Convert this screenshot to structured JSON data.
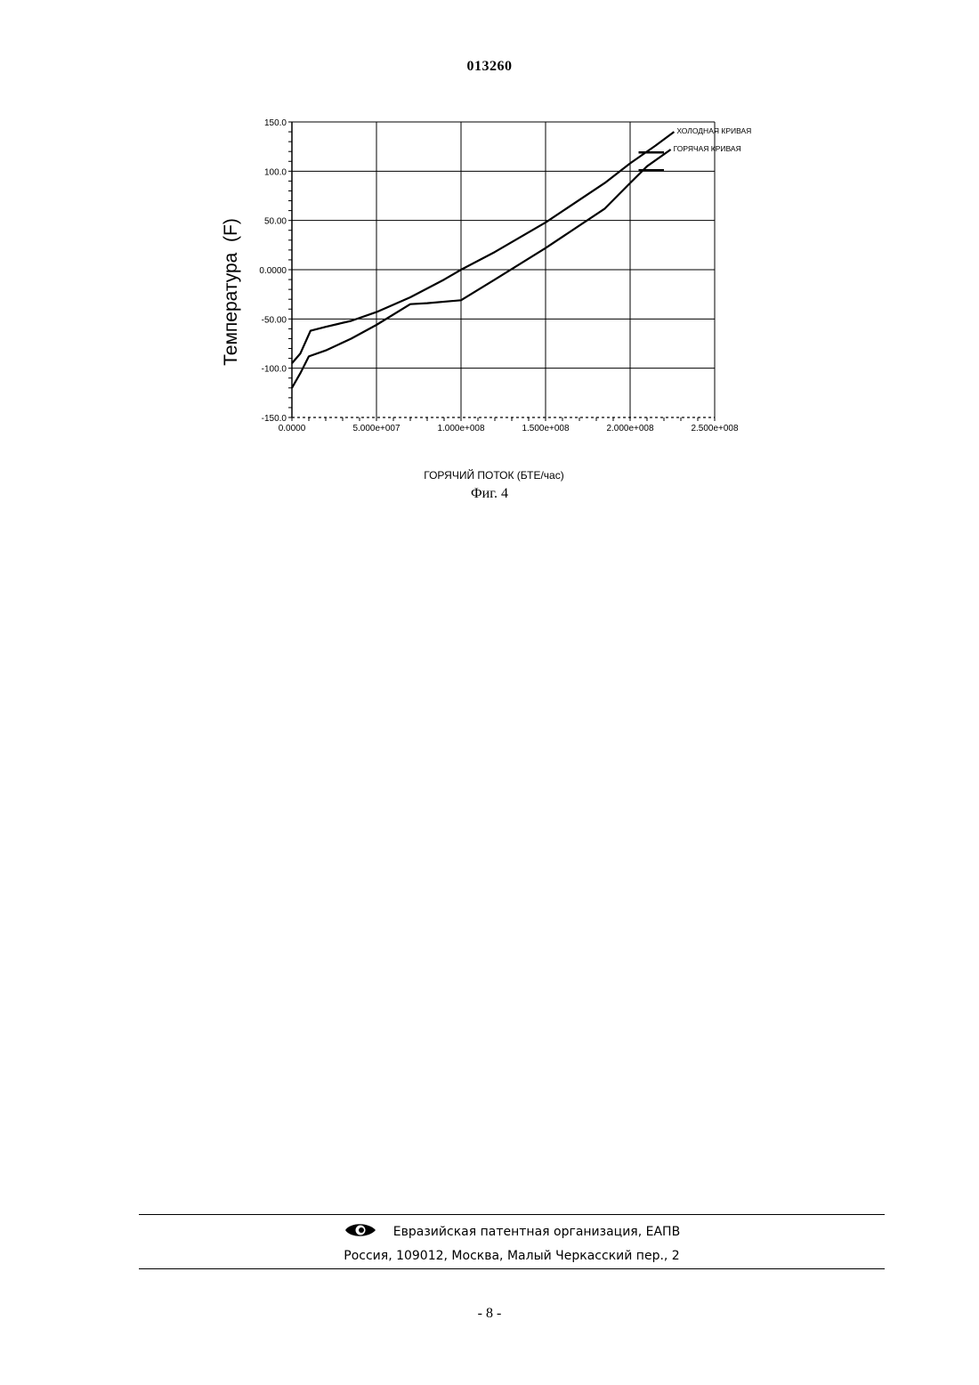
{
  "header": {
    "doc_number": "013260"
  },
  "figure": {
    "caption": "Фиг. 4"
  },
  "chart_data": {
    "type": "line",
    "title": "",
    "xlabel": "ГОРЯЧИЙ ПОТОК (БТЕ/час)",
    "ylabel": "Температура  (F)",
    "xlim": [
      0,
      250000000
    ],
    "ylim": [
      -150,
      150
    ],
    "x_ticks": [
      0,
      50000000,
      100000000,
      150000000,
      200000000,
      250000000
    ],
    "x_tick_labels": [
      "0.0000",
      "5.000e+007",
      "1.000e+008",
      "1.500e+008",
      "2.000e+008",
      "2.500e+008"
    ],
    "y_ticks": [
      150,
      100,
      50,
      0,
      -50,
      -100,
      -150
    ],
    "y_tick_labels": [
      "150.0",
      "100.0",
      "50.00",
      "0.0000",
      "-50.00",
      "-100.0",
      "-150.0"
    ],
    "grid": true,
    "series": [
      {
        "name": "ХОЛОДНАЯ КРИВАЯ",
        "x": [
          0,
          5000000,
          11000000,
          20000000,
          35000000,
          50000000,
          70000000,
          90000000,
          100000000,
          120000000,
          150000000,
          185000000,
          200000000,
          215000000,
          226000000
        ],
        "y": [
          -95,
          -85,
          -62,
          -58,
          -52,
          -43,
          -28,
          -10,
          0,
          18,
          48,
          88,
          108,
          126,
          140
        ]
      },
      {
        "name": "ГОРЯЧАЯ КРИВАЯ",
        "x": [
          0,
          5000000,
          10000000,
          20000000,
          35000000,
          50000000,
          70000000,
          80000000,
          100000000,
          120000000,
          150000000,
          185000000,
          200000000,
          210000000,
          224000000
        ],
        "y": [
          -120,
          -105,
          -88,
          -82,
          -70,
          -56,
          -35,
          -34,
          -31,
          -10,
          22,
          62,
          88,
          105,
          122
        ]
      }
    ],
    "markers": [
      {
        "x": [
          205000000,
          220000000
        ],
        "y": 119
      },
      {
        "x": [
          205000000,
          220000000
        ],
        "y": 101
      }
    ],
    "legend_placement": "right, at line ends"
  },
  "footer": {
    "org": "Евразийская патентная организация, ЕАПВ",
    "address": "Россия, 109012, Москва, Малый Черкасский пер., 2",
    "logo_icon": "eapo-logo-icon"
  },
  "page": {
    "number": "- 8 -"
  }
}
